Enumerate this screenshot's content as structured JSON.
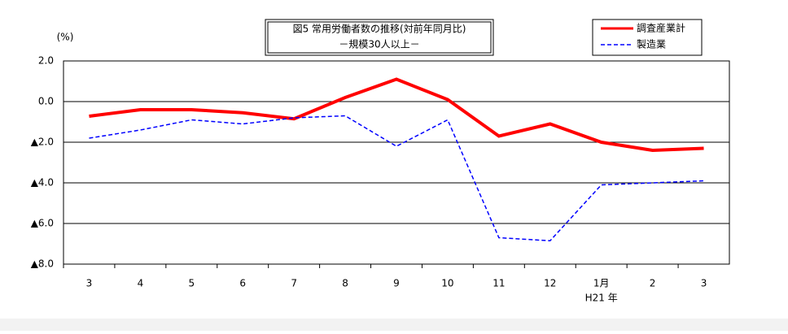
{
  "chart_data": {
    "type": "line",
    "title": "図5 常用労働者数の推移(対前年同月比)",
    "subtitle": "－規模30人以上－",
    "y_label": "(%)",
    "annotation": "H21 年",
    "categories": [
      "3",
      "4",
      "5",
      "6",
      "7",
      "8",
      "9",
      "10",
      "11",
      "12",
      "1月",
      "2",
      "3"
    ],
    "series": [
      {
        "name": "調査産業計",
        "color": "#ff0000",
        "dash": false,
        "values": [
          -0.72,
          -0.4,
          -0.4,
          -0.55,
          -0.85,
          0.2,
          1.1,
          0.1,
          -1.7,
          -1.1,
          -2.0,
          -2.4,
          -2.3
        ]
      },
      {
        "name": "製造業",
        "color": "#0000ff",
        "dash": true,
        "values": [
          -1.8,
          -1.4,
          -0.9,
          -1.1,
          -0.8,
          -0.7,
          -2.2,
          -0.9,
          -6.7,
          -6.85,
          -4.1,
          -4.0,
          -3.9
        ]
      }
    ],
    "ylim": [
      -8,
      2
    ],
    "yticks": [
      {
        "value": 2,
        "label": "2.0"
      },
      {
        "value": 0,
        "label": "0.0"
      },
      {
        "value": -2,
        "label": "▲2.0"
      },
      {
        "value": -4,
        "label": "▲4.0"
      },
      {
        "value": -6,
        "label": "▲6.0"
      },
      {
        "value": -8,
        "label": "▲8.0"
      }
    ],
    "grid": true
  }
}
